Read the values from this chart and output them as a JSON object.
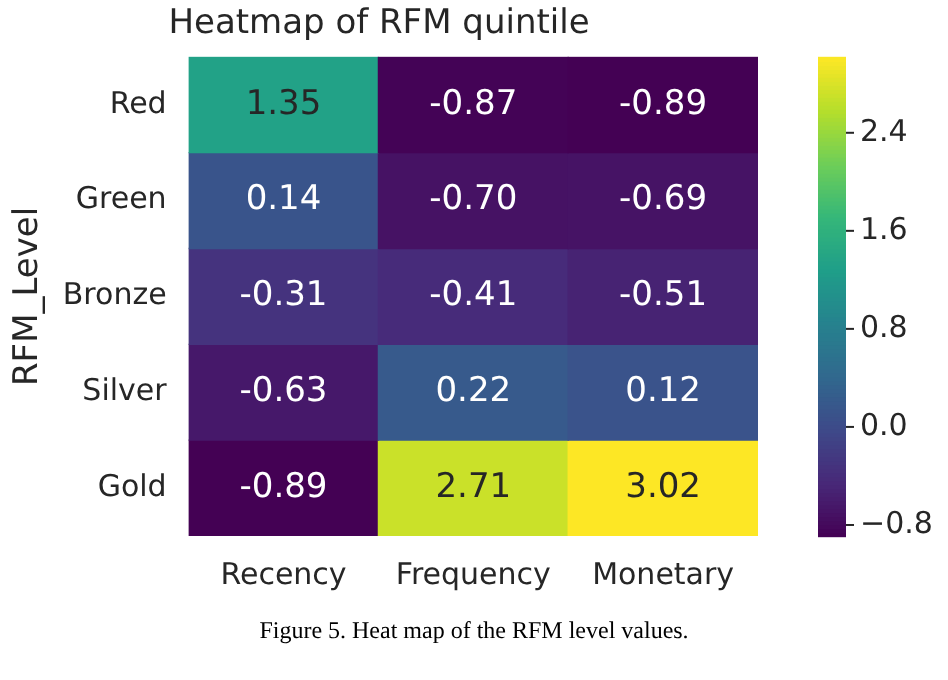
{
  "chart_data": {
    "type": "heatmap",
    "title": "Heatmap of RFM quintile",
    "ylabel": "RFM_Level",
    "categories": [
      "Recency",
      "Frequency",
      "Monetary"
    ],
    "y_categories": [
      "Red",
      "Green",
      "Bronze",
      "Silver",
      "Gold"
    ],
    "cells": [
      [
        1.35,
        -0.87,
        -0.89
      ],
      [
        0.14,
        -0.7,
        -0.69
      ],
      [
        -0.31,
        -0.41,
        -0.51
      ],
      [
        -0.63,
        0.22,
        0.12
      ],
      [
        -0.89,
        2.71,
        3.02
      ]
    ],
    "cell_labels": [
      [
        "1.35",
        "-0.87",
        "-0.89"
      ],
      [
        "0.14",
        "-0.70",
        "-0.69"
      ],
      [
        "-0.31",
        "-0.41",
        "-0.51"
      ],
      [
        "-0.63",
        "0.22",
        "0.12"
      ],
      [
        "-0.89",
        "2.71",
        "3.02"
      ]
    ],
    "clim": [
      -0.89,
      3.02
    ],
    "cticks": [
      {
        "value": -0.8,
        "label": "−0.8"
      },
      {
        "value": 0,
        "label": "0.0"
      },
      {
        "value": 0.8,
        "label": "0.8"
      },
      {
        "value": 1.6,
        "label": "1.6"
      },
      {
        "value": 2.4,
        "label": "2.4"
      }
    ],
    "annotations": [
      "Figure 5. Heat map of the RFM level values."
    ]
  }
}
